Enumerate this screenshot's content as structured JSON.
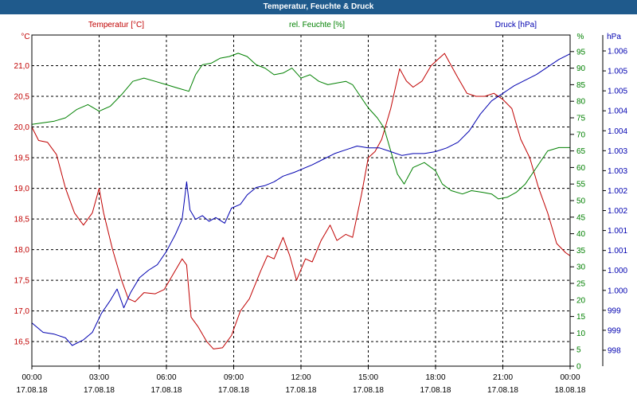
{
  "window": {
    "title": "Temperatur, Feuchte & Druck"
  },
  "colors": {
    "temperature": "#c00000",
    "humidity": "#008000",
    "pressure": "#0000b0",
    "grid": "#000000",
    "titlebar": "#1f5a8c"
  },
  "chart_data": {
    "type": "line",
    "title": "Temperatur, Feuchte & Druck",
    "grid": true,
    "x_range_hours": [
      0,
      24
    ],
    "x_ticks": [
      {
        "h": 0,
        "time": "00:00",
        "date": "17.08.18"
      },
      {
        "h": 3,
        "time": "03:00",
        "date": "17.08.18"
      },
      {
        "h": 6,
        "time": "06:00",
        "date": "17.08.18"
      },
      {
        "h": 9,
        "time": "09:00",
        "date": "17.08.18"
      },
      {
        "h": 12,
        "time": "12:00",
        "date": "17.08.18"
      },
      {
        "h": 15,
        "time": "15:00",
        "date": "17.08.18"
      },
      {
        "h": 18,
        "time": "18:00",
        "date": "17.08.18"
      },
      {
        "h": 21,
        "time": "21:00",
        "date": "17.08.18"
      },
      {
        "h": 24,
        "time": "00:00",
        "date": "18.08.18"
      }
    ],
    "axes": {
      "temperature": {
        "title": "Temperatur [°C]",
        "unit": "°C",
        "range": [
          16.1,
          21.5
        ],
        "ticks": [
          "16,5",
          "17,0",
          "17,5",
          "18,0",
          "18,5",
          "19,0",
          "19,5",
          "20,0",
          "20,5",
          "21,0"
        ]
      },
      "humidity": {
        "title": "rel. Feuchte [%]",
        "unit": "%",
        "range": [
          0,
          100
        ],
        "ticks": [
          "0",
          "5",
          "10",
          "15",
          "20",
          "25",
          "30",
          "35",
          "40",
          "45",
          "50",
          "55",
          "60",
          "65",
          "70",
          "75",
          "80",
          "85",
          "90",
          "95"
        ]
      },
      "pressure": {
        "title": "Druck [hPa]",
        "unit": "hPa",
        "range": [
          997.7,
          1006.5
        ],
        "ticks": [
          "998",
          "999",
          "999",
          "1.000",
          "1.000",
          "1.001",
          "1.001",
          "1.002",
          "1.002",
          "1.003",
          "1.003",
          "1.004",
          "1.004",
          "1.005",
          "1.005",
          "1.006"
        ]
      }
    },
    "series": [
      {
        "name": "Temperatur [°C]",
        "axis": "temperature",
        "points": [
          [
            0,
            20.0
          ],
          [
            0.3,
            19.78
          ],
          [
            0.7,
            19.75
          ],
          [
            1.1,
            19.55
          ],
          [
            1.5,
            19.0
          ],
          [
            1.9,
            18.6
          ],
          [
            2.3,
            18.4
          ],
          [
            2.7,
            18.6
          ],
          [
            3.0,
            19.0
          ],
          [
            3.2,
            18.6
          ],
          [
            3.6,
            18.0
          ],
          [
            4.0,
            17.5
          ],
          [
            4.3,
            17.2
          ],
          [
            4.6,
            17.15
          ],
          [
            5.0,
            17.3
          ],
          [
            5.5,
            17.28
          ],
          [
            5.9,
            17.35
          ],
          [
            6.3,
            17.6
          ],
          [
            6.7,
            17.85
          ],
          [
            6.9,
            17.75
          ],
          [
            7.1,
            16.9
          ],
          [
            7.4,
            16.75
          ],
          [
            7.8,
            16.5
          ],
          [
            8.1,
            16.38
          ],
          [
            8.5,
            16.4
          ],
          [
            8.9,
            16.6
          ],
          [
            9.3,
            17.0
          ],
          [
            9.7,
            17.2
          ],
          [
            10.2,
            17.65
          ],
          [
            10.5,
            17.9
          ],
          [
            10.8,
            17.85
          ],
          [
            11.2,
            18.2
          ],
          [
            11.5,
            17.9
          ],
          [
            11.8,
            17.5
          ],
          [
            12.2,
            17.85
          ],
          [
            12.5,
            17.8
          ],
          [
            12.9,
            18.15
          ],
          [
            13.3,
            18.4
          ],
          [
            13.6,
            18.15
          ],
          [
            14.0,
            18.25
          ],
          [
            14.3,
            18.2
          ],
          [
            14.7,
            18.9
          ],
          [
            15.0,
            19.5
          ],
          [
            15.3,
            19.6
          ],
          [
            15.6,
            19.8
          ],
          [
            16.0,
            20.3
          ],
          [
            16.4,
            20.95
          ],
          [
            16.7,
            20.75
          ],
          [
            17.0,
            20.65
          ],
          [
            17.4,
            20.75
          ],
          [
            17.8,
            21.0
          ],
          [
            18.1,
            21.1
          ],
          [
            18.4,
            21.2
          ],
          [
            18.7,
            21.0
          ],
          [
            19.0,
            20.8
          ],
          [
            19.4,
            20.55
          ],
          [
            19.8,
            20.5
          ],
          [
            20.2,
            20.5
          ],
          [
            20.6,
            20.55
          ],
          [
            21.0,
            20.45
          ],
          [
            21.4,
            20.3
          ],
          [
            21.8,
            19.8
          ],
          [
            22.2,
            19.5
          ],
          [
            22.6,
            19.0
          ],
          [
            23.0,
            18.6
          ],
          [
            23.4,
            18.1
          ],
          [
            23.8,
            17.95
          ],
          [
            24.0,
            17.9
          ]
        ]
      },
      {
        "name": "rel. Feuchte [%]",
        "axis": "humidity",
        "points": [
          [
            0,
            73
          ],
          [
            0.5,
            73.5
          ],
          [
            1.0,
            74
          ],
          [
            1.5,
            75
          ],
          [
            2.0,
            77.5
          ],
          [
            2.5,
            79
          ],
          [
            3.0,
            77
          ],
          [
            3.5,
            78.5
          ],
          [
            4.0,
            82
          ],
          [
            4.5,
            86
          ],
          [
            5.0,
            87
          ],
          [
            5.5,
            86
          ],
          [
            6.0,
            85
          ],
          [
            6.5,
            84
          ],
          [
            7.0,
            83
          ],
          [
            7.3,
            88
          ],
          [
            7.6,
            91
          ],
          [
            8.0,
            91.5
          ],
          [
            8.4,
            93
          ],
          [
            8.8,
            93.5
          ],
          [
            9.2,
            94.5
          ],
          [
            9.6,
            93.5
          ],
          [
            10.0,
            91
          ],
          [
            10.4,
            90
          ],
          [
            10.8,
            88
          ],
          [
            11.2,
            88.5
          ],
          [
            11.6,
            90
          ],
          [
            12.0,
            87
          ],
          [
            12.4,
            88
          ],
          [
            12.8,
            86
          ],
          [
            13.2,
            85
          ],
          [
            13.6,
            85.5
          ],
          [
            14.0,
            86
          ],
          [
            14.3,
            85
          ],
          [
            14.6,
            82
          ],
          [
            15.0,
            78
          ],
          [
            15.4,
            75
          ],
          [
            15.7,
            72
          ],
          [
            16.0,
            65
          ],
          [
            16.3,
            58
          ],
          [
            16.6,
            55
          ],
          [
            17.0,
            60
          ],
          [
            17.5,
            61.5
          ],
          [
            18.0,
            59
          ],
          [
            18.3,
            55
          ],
          [
            18.7,
            53
          ],
          [
            19.2,
            52
          ],
          [
            19.6,
            53
          ],
          [
            20.1,
            52.5
          ],
          [
            20.5,
            52
          ],
          [
            20.8,
            50.5
          ],
          [
            21.2,
            51
          ],
          [
            21.6,
            52.5
          ],
          [
            22.0,
            55
          ],
          [
            22.5,
            60
          ],
          [
            23.0,
            65
          ],
          [
            23.5,
            66
          ],
          [
            24.0,
            66
          ]
        ]
      },
      {
        "name": "Druck [hPa]",
        "axis": "pressure",
        "points": [
          [
            0,
            998.85
          ],
          [
            0.5,
            998.6
          ],
          [
            1.0,
            998.55
          ],
          [
            1.5,
            998.45
          ],
          [
            1.8,
            998.25
          ],
          [
            2.3,
            998.4
          ],
          [
            2.7,
            998.6
          ],
          [
            3.1,
            999.1
          ],
          [
            3.5,
            999.45
          ],
          [
            3.8,
            999.75
          ],
          [
            4.1,
            999.25
          ],
          [
            4.4,
            999.65
          ],
          [
            4.8,
            1000.05
          ],
          [
            5.2,
            1000.25
          ],
          [
            5.6,
            1000.4
          ],
          [
            6.0,
            1000.75
          ],
          [
            6.4,
            1001.2
          ],
          [
            6.7,
            1001.6
          ],
          [
            6.9,
            1002.6
          ],
          [
            7.05,
            1001.85
          ],
          [
            7.3,
            1001.6
          ],
          [
            7.6,
            1001.7
          ],
          [
            7.9,
            1001.55
          ],
          [
            8.2,
            1001.65
          ],
          [
            8.6,
            1001.5
          ],
          [
            8.9,
            1001.9
          ],
          [
            9.3,
            1002.0
          ],
          [
            9.6,
            1002.25
          ],
          [
            10.0,
            1002.45
          ],
          [
            10.4,
            1002.5
          ],
          [
            10.8,
            1002.6
          ],
          [
            11.2,
            1002.75
          ],
          [
            11.7,
            1002.85
          ],
          [
            12.1,
            1002.95
          ],
          [
            12.5,
            1003.05
          ],
          [
            13.0,
            1003.2
          ],
          [
            13.5,
            1003.35
          ],
          [
            14.0,
            1003.45
          ],
          [
            14.5,
            1003.55
          ],
          [
            15.0,
            1003.5
          ],
          [
            15.5,
            1003.5
          ],
          [
            16.0,
            1003.4
          ],
          [
            16.5,
            1003.3
          ],
          [
            17.0,
            1003.35
          ],
          [
            17.5,
            1003.35
          ],
          [
            18.0,
            1003.4
          ],
          [
            18.5,
            1003.5
          ],
          [
            19.0,
            1003.65
          ],
          [
            19.5,
            1003.95
          ],
          [
            20.0,
            1004.4
          ],
          [
            20.5,
            1004.75
          ],
          [
            21.0,
            1004.95
          ],
          [
            21.5,
            1005.15
          ],
          [
            22.0,
            1005.3
          ],
          [
            22.5,
            1005.45
          ],
          [
            23.0,
            1005.65
          ],
          [
            23.5,
            1005.85
          ],
          [
            24.0,
            1006.0
          ]
        ]
      }
    ]
  }
}
